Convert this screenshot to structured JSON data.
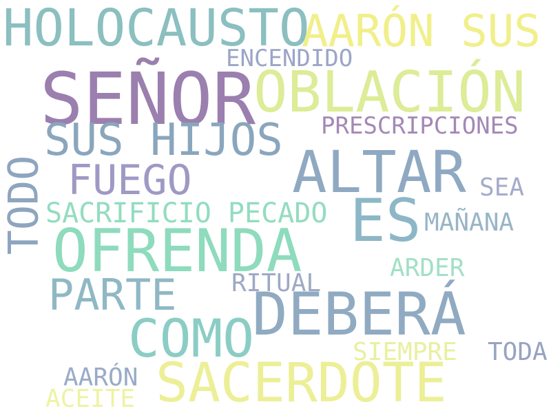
{
  "cloud": {
    "words": [
      {
        "text": "HOLOCAUSTO",
        "color": "#8bbfc0"
      },
      {
        "text": "AARÓN SUS",
        "color": "#f1ef8a"
      },
      {
        "text": "ENCENDIDO",
        "color": "#9ba5c7"
      },
      {
        "text": "SEÑOR",
        "color": "#9b7fae"
      },
      {
        "text": "OBLACIÓN",
        "color": "#dcec97"
      },
      {
        "text": "SUS HIJOS",
        "color": "#8aa6bd"
      },
      {
        "text": "PRESCRIPCIONES",
        "color": "#a488b6"
      },
      {
        "text": "TODO",
        "color": "#8ea5bf"
      },
      {
        "text": "ALTAR",
        "color": "#90a9c2"
      },
      {
        "text": "FUEGO",
        "color": "#9e99c4"
      },
      {
        "text": "SEA",
        "color": "#a5abca"
      },
      {
        "text": "SACRIFICIO PECADO",
        "color": "#93dcc0"
      },
      {
        "text": "ES",
        "color": "#8db7c6"
      },
      {
        "text": "MAÑANA",
        "color": "#98b5c6"
      },
      {
        "text": "OFRENDA",
        "color": "#8edbbd"
      },
      {
        "text": "ARDER",
        "color": "#a2e0c6"
      },
      {
        "text": "RITUAL",
        "color": "#9ea9c6"
      },
      {
        "text": "PARTE",
        "color": "#8fb8c4"
      },
      {
        "text": "DEBERÁ",
        "color": "#90aac2"
      },
      {
        "text": "COMO",
        "color": "#8bcdc5"
      },
      {
        "text": "SIEMPRE",
        "color": "#e8f0a0"
      },
      {
        "text": "TODA",
        "color": "#98a3c2"
      },
      {
        "text": "AARÓN",
        "color": "#9aabc9"
      },
      {
        "text": "SACERDOTE",
        "color": "#ecef96"
      },
      {
        "text": "ACEITE",
        "color": "#edf3a3"
      }
    ]
  }
}
